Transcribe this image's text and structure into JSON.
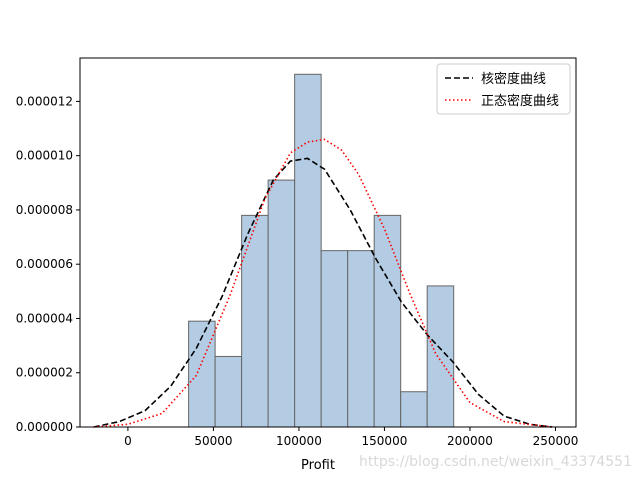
{
  "chart_data": {
    "type": "bar",
    "title": "",
    "xlabel": "Profit",
    "ylabel": "",
    "xlim": [
      -28000,
      262000
    ],
    "ylim": [
      0,
      1.36e-05
    ],
    "x_ticks": [
      0,
      50000,
      100000,
      150000,
      200000,
      250000
    ],
    "y_ticks": [
      0,
      2e-06,
      4e-06,
      6e-06,
      8e-06,
      1e-05,
      1.2e-05
    ],
    "x_tick_labels": [
      "0",
      "50000",
      "100000",
      "150000",
      "200000",
      "250000"
    ],
    "y_tick_labels": [
      "0.000000",
      "0.000002",
      "0.000004",
      "0.000006",
      "0.000008",
      "0.000010",
      "0.000012"
    ],
    "histogram": {
      "bin_edges": [
        35500,
        51000,
        66500,
        82000,
        97500,
        113000,
        128500,
        144000,
        159500,
        175000,
        190500
      ],
      "values": [
        3.9e-06,
        2.6e-06,
        7.8e-06,
        9.1e-06,
        1.3e-05,
        6.5e-06,
        6.5e-06,
        7.8e-06,
        1.3e-06,
        5.2e-06
      ],
      "fill": "#b3cce3",
      "edge": "#666666"
    },
    "series": [
      {
        "name": "核密度曲线",
        "style": "dashed",
        "color": "#000000",
        "x": [
          -20000,
          -5000,
          10000,
          25000,
          40000,
          55000,
          70000,
          85000,
          95000,
          105000,
          115000,
          130000,
          145000,
          160000,
          175000,
          190000,
          205000,
          220000,
          235000,
          248000
        ],
        "y": [
          0.0,
          2e-07,
          6e-07,
          1.5e-06,
          2.9e-06,
          4.8e-06,
          7.1e-06,
          9.1e-06,
          9.8e-06,
          9.9e-06,
          9.5e-06,
          8e-06,
          6.2e-06,
          4.6e-06,
          3.4e-06,
          2.4e-06,
          1.2e-06,
          4e-07,
          1e-07,
          0.0
        ]
      },
      {
        "name": "正态密度曲线",
        "style": "dotted",
        "color": "#ff0000",
        "x": [
          -20000,
          0,
          20000,
          40000,
          60000,
          80000,
          95000,
          105000,
          115000,
          125000,
          135000,
          150000,
          165000,
          180000,
          200000,
          220000,
          248000
        ],
        "y": [
          0.0,
          1e-07,
          5e-07,
          1.9e-06,
          4.9e-06,
          8.4e-06,
          1.01e-05,
          1.05e-05,
          1.06e-05,
          1.02e-05,
          9.3e-06,
          7.3e-06,
          4.9e-06,
          2.7e-06,
          9e-07,
          2e-07,
          0.0
        ]
      }
    ],
    "legend_position": "top-right",
    "grid": false
  },
  "watermark": "https://blog.csdn.net/weixin_43374551"
}
